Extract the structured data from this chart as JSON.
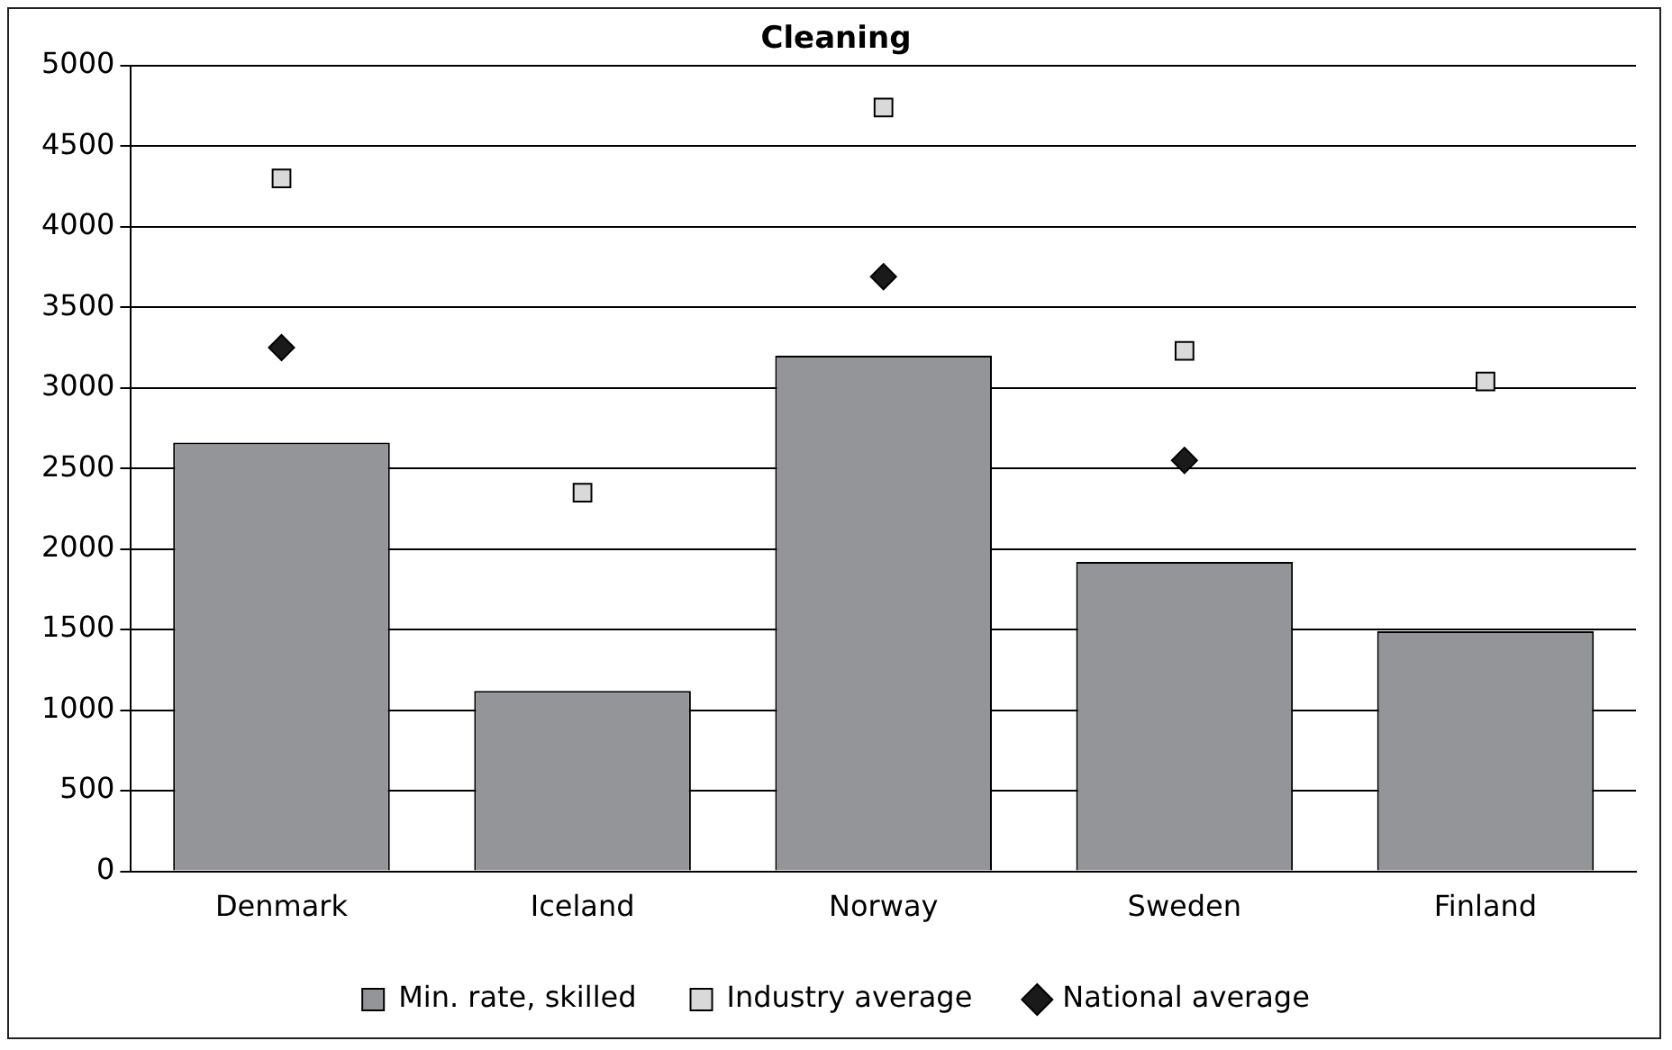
{
  "chart_data": {
    "type": "bar",
    "title": "Cleaning",
    "categories": [
      "Denmark",
      "Iceland",
      "Norway",
      "Sweden",
      "Finland"
    ],
    "series": [
      {
        "name": "Min. rate, skilled",
        "color": "#939598",
        "values": [
          2660,
          1120,
          3200,
          1920,
          1490
        ]
      },
      {
        "name": "Industry average",
        "type": "scatter",
        "marker": "square",
        "color": "#d9d9d9",
        "values": [
          4300,
          2350,
          4740,
          3230,
          3040
        ]
      },
      {
        "name": "National average",
        "type": "scatter",
        "marker": "diamond",
        "color": "#1a1a1a",
        "values": [
          3250,
          null,
          3690,
          2550,
          null
        ]
      }
    ],
    "ylim": [
      0,
      5000
    ],
    "yticks": [
      0,
      500,
      1000,
      1500,
      2000,
      2500,
      3000,
      3500,
      4000,
      4500,
      5000
    ],
    "grid": "y",
    "legend": "bottom"
  }
}
